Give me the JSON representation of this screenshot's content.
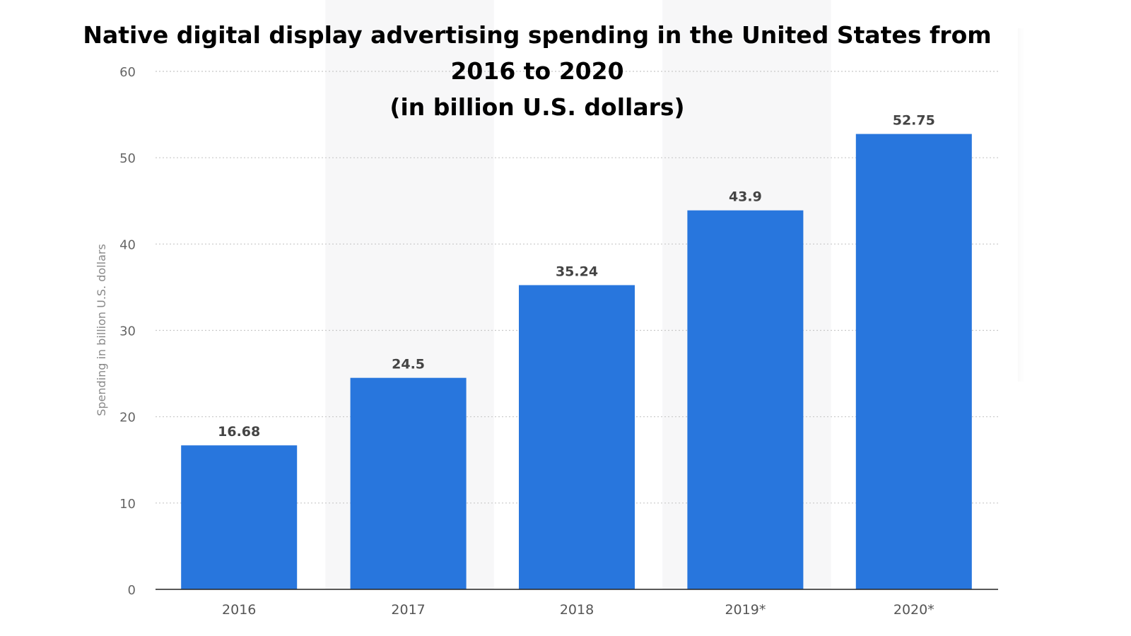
{
  "chart_data": {
    "type": "bar",
    "title": [
      "Native digital display advertising spending in the United States from",
      "2016 to 2020",
      "(in billion U.S. dollars)"
    ],
    "xlabel": "",
    "ylabel": "Spending in billion U.S. dollars",
    "categories": [
      "2016",
      "2017",
      "2018",
      "2019*",
      "2020*"
    ],
    "values": [
      16.68,
      24.5,
      35.24,
      43.9,
      52.75
    ],
    "value_labels": [
      "16.68",
      "24.5",
      "35.24",
      "43.9",
      "52.75"
    ],
    "ylim": [
      0,
      60
    ],
    "yticks": [
      0,
      10,
      20,
      30,
      40,
      50,
      60
    ],
    "grid": true,
    "bar_color": "#2876dd",
    "legend": "none"
  }
}
